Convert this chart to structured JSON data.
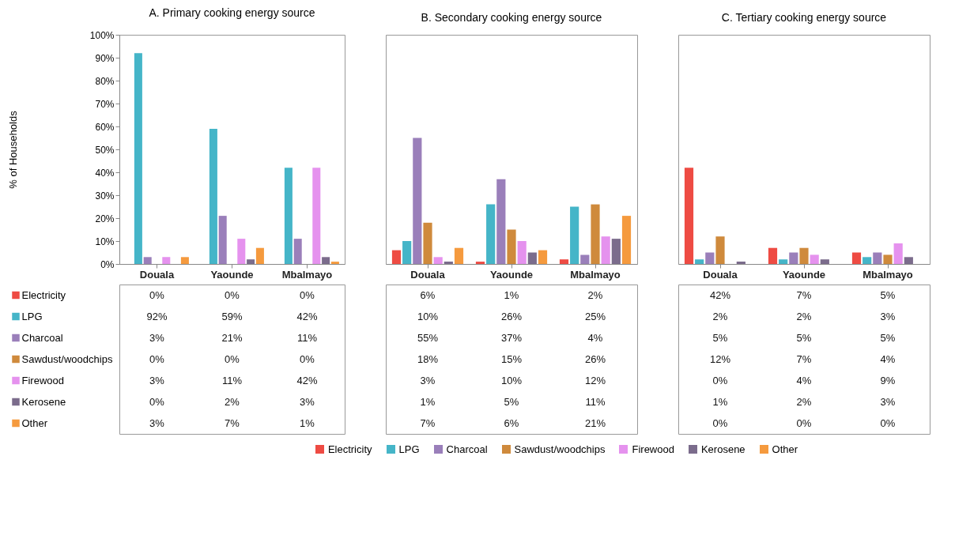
{
  "chart_data": [
    {
      "type": "bar",
      "title": "A. Primary cooking energy source",
      "ylabel": "%  of Households",
      "categories": [
        "Douala",
        "Yaounde",
        "Mbalmayo"
      ],
      "ylim": [
        0,
        100
      ],
      "yticks": [
        {
          "value": 0,
          "label": "0%"
        },
        {
          "value": 10,
          "label": "10%"
        },
        {
          "value": 20,
          "label": "20%"
        },
        {
          "value": 30,
          "label": "30%"
        },
        {
          "value": 40,
          "label": "40%"
        },
        {
          "value": 50,
          "label": "50%"
        },
        {
          "value": 60,
          "label": "60%"
        },
        {
          "value": 70,
          "label": "70%"
        },
        {
          "value": 80,
          "label": "80%"
        },
        {
          "value": 90,
          "label": "90%"
        },
        {
          "value": 100,
          "label": "100%"
        }
      ],
      "grid": false,
      "legend": "left",
      "series": [
        {
          "name": "Electricity",
          "color": "#ee4b43",
          "values": [
            0,
            0,
            0
          ],
          "value_labels": [
            "0%",
            "0%",
            "0%"
          ]
        },
        {
          "name": "LPG",
          "color": "#45b5c8",
          "values": [
            92,
            59,
            42
          ],
          "value_labels": [
            "92%",
            "59%",
            "42%"
          ]
        },
        {
          "name": "Charcoal",
          "color": "#9a7fba",
          "values": [
            3,
            21,
            11
          ],
          "value_labels": [
            "3%",
            "21%",
            "11%"
          ]
        },
        {
          "name": "Sawdust/woodchips",
          "color": "#cf8a3c",
          "values": [
            0,
            0,
            0
          ],
          "value_labels": [
            "0%",
            "0%",
            "0%"
          ]
        },
        {
          "name": "Firewood",
          "color": "#e592ee",
          "values": [
            3,
            11,
            42
          ],
          "value_labels": [
            "3%",
            "11%",
            "42%"
          ]
        },
        {
          "name": "Kerosene",
          "color": "#7b6c8c",
          "values": [
            0,
            2,
            3
          ],
          "value_labels": [
            "0%",
            "2%",
            "3%"
          ]
        },
        {
          "name": "Other",
          "color": "#f59a3e",
          "values": [
            3,
            7,
            1
          ],
          "value_labels": [
            "3%",
            "7%",
            "1%"
          ]
        }
      ]
    },
    {
      "type": "bar",
      "title": "B. Secondary cooking energy source",
      "categories": [
        "Douala",
        "Yaounde",
        "Mbalmayo"
      ],
      "ylim": [
        0,
        100
      ],
      "tick_labels": "x",
      "grid": false,
      "legend": "bottom",
      "series": [
        {
          "name": "Electricity",
          "color": "#ee4b43",
          "values": [
            6,
            1,
            2
          ],
          "value_labels": [
            "6%",
            "1%",
            "2%"
          ]
        },
        {
          "name": "LPG",
          "color": "#45b5c8",
          "values": [
            10,
            26,
            25
          ],
          "value_labels": [
            "10%",
            "26%",
            "25%"
          ]
        },
        {
          "name": "Charcoal",
          "color": "#9a7fba",
          "values": [
            55,
            37,
            4
          ],
          "value_labels": [
            "55%",
            "37%",
            "4%"
          ]
        },
        {
          "name": "Sawdust/woodchips",
          "color": "#cf8a3c",
          "values": [
            18,
            15,
            26
          ],
          "value_labels": [
            "18%",
            "15%",
            "26%"
          ]
        },
        {
          "name": "Firewood",
          "color": "#e592ee",
          "values": [
            3,
            10,
            12
          ],
          "value_labels": [
            "3%",
            "10%",
            "12%"
          ]
        },
        {
          "name": "Kerosene",
          "color": "#7b6c8c",
          "values": [
            1,
            5,
            11
          ],
          "value_labels": [
            "1%",
            "5%",
            "11%"
          ]
        },
        {
          "name": "Other",
          "color": "#f59a3e",
          "values": [
            7,
            6,
            21
          ],
          "value_labels": [
            "7%",
            "6%",
            "21%"
          ]
        }
      ]
    },
    {
      "type": "bar",
      "title": "C. Tertiary cooking energy source",
      "categories": [
        "Douala",
        "Yaounde",
        "Mbalmayo"
      ],
      "ylim": [
        0,
        100
      ],
      "tick_labels": "x",
      "grid": false,
      "series": [
        {
          "color": "#ee4b43",
          "values": [
            42,
            7,
            5
          ],
          "value_labels": [
            "42%",
            "7%",
            "5%"
          ]
        },
        {
          "color": "#45b5c8",
          "values": [
            2,
            2,
            3
          ],
          "value_labels": [
            "2%",
            "2%",
            "3%"
          ]
        },
        {
          "color": "#9a7fba",
          "values": [
            5,
            5,
            5
          ],
          "value_labels": [
            "5%",
            "5%",
            "5%"
          ]
        },
        {
          "color": "#cf8a3c",
          "values": [
            12,
            7,
            4
          ],
          "value_labels": [
            "12%",
            "7%",
            "4%"
          ]
        },
        {
          "color": "#e592ee",
          "values": [
            0,
            4,
            9
          ],
          "value_labels": [
            "0%",
            "4%",
            "9%"
          ]
        },
        {
          "color": "#7b6c8c",
          "values": [
            1,
            2,
            3
          ],
          "value_labels": [
            "1%",
            "2%",
            "3%"
          ]
        },
        {
          "color": "#f59a3e",
          "values": [
            0,
            0,
            0
          ],
          "value_labels": [
            "0%",
            "0%",
            "0%"
          ]
        }
      ]
    }
  ]
}
